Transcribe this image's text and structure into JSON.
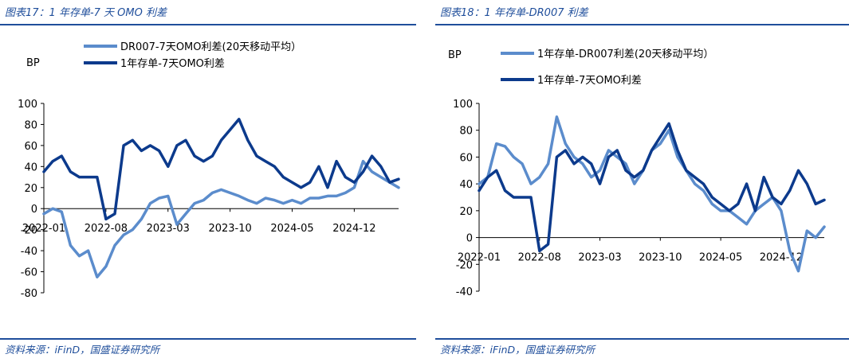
{
  "panels": [
    {
      "title": "图表17：1 年存单-7 天 OMO 利差",
      "source": "资料来源：iFinD，国盛证券研究所"
    },
    {
      "title": "图表18：1 年存单-DR007 利差",
      "source": "资料来源：iFinD，国盛证券研究所"
    }
  ],
  "chart_data": [
    {
      "type": "line",
      "ylabel": "BP",
      "ylim": [
        -80,
        100
      ],
      "yticks": [
        -80,
        -60,
        -40,
        -20,
        0,
        20,
        40,
        60,
        80,
        100
      ],
      "xlim": [
        "2022-01",
        "2025-05"
      ],
      "xticks": [
        "2022-01",
        "2022-08",
        "2023-03",
        "2023-10",
        "2024-05",
        "2024-12"
      ],
      "legend": "top",
      "series": [
        {
          "name": "DR007-7天OMO利差(20天移动平均）",
          "color": "#5b8ccc",
          "x": [
            "2022-01",
            "2022-02",
            "2022-03",
            "2022-04",
            "2022-05",
            "2022-06",
            "2022-07",
            "2022-08",
            "2022-09",
            "2022-10",
            "2022-11",
            "2022-12",
            "2023-01",
            "2023-02",
            "2023-03",
            "2023-04",
            "2023-05",
            "2023-06",
            "2023-07",
            "2023-08",
            "2023-09",
            "2023-10",
            "2023-11",
            "2023-12",
            "2024-01",
            "2024-02",
            "2024-03",
            "2024-04",
            "2024-05",
            "2024-06",
            "2024-07",
            "2024-08",
            "2024-09",
            "2024-10",
            "2024-11",
            "2024-12",
            "2025-01",
            "2025-02",
            "2025-03",
            "2025-04",
            "2025-05"
          ],
          "values": [
            -5,
            0,
            -3,
            -35,
            -45,
            -40,
            -65,
            -55,
            -35,
            -25,
            -20,
            -10,
            5,
            10,
            12,
            -15,
            -5,
            5,
            8,
            15,
            18,
            15,
            12,
            8,
            5,
            10,
            8,
            5,
            8,
            5,
            10,
            10,
            12,
            12,
            15,
            20,
            45,
            35,
            30,
            25,
            20
          ]
        },
        {
          "name": "1年存单-7天OMO利差",
          "color": "#0c3a8c",
          "x": [
            "2022-01",
            "2022-02",
            "2022-03",
            "2022-04",
            "2022-05",
            "2022-06",
            "2022-07",
            "2022-08",
            "2022-09",
            "2022-10",
            "2022-11",
            "2022-12",
            "2023-01",
            "2023-02",
            "2023-03",
            "2023-04",
            "2023-05",
            "2023-06",
            "2023-07",
            "2023-08",
            "2023-09",
            "2023-10",
            "2023-11",
            "2023-12",
            "2024-01",
            "2024-02",
            "2024-03",
            "2024-04",
            "2024-05",
            "2024-06",
            "2024-07",
            "2024-08",
            "2024-09",
            "2024-10",
            "2024-11",
            "2024-12",
            "2025-01",
            "2025-02",
            "2025-03",
            "2025-04",
            "2025-05"
          ],
          "values": [
            35,
            45,
            50,
            35,
            30,
            30,
            30,
            -10,
            -5,
            60,
            65,
            55,
            60,
            55,
            40,
            60,
            65,
            50,
            45,
            50,
            65,
            75,
            85,
            65,
            50,
            45,
            40,
            30,
            25,
            20,
            25,
            40,
            20,
            45,
            30,
            25,
            35,
            50,
            40,
            25,
            28
          ]
        }
      ]
    },
    {
      "type": "line",
      "ylabel": "BP",
      "ylim": [
        -40,
        100
      ],
      "yticks": [
        -40,
        -20,
        0,
        20,
        40,
        60,
        80,
        100
      ],
      "xlim": [
        "2022-01",
        "2025-05"
      ],
      "xticks": [
        "2022-01",
        "2022-08",
        "2023-03",
        "2023-10",
        "2024-05",
        "2024-12"
      ],
      "legend": "top",
      "series": [
        {
          "name": "1年存单-DR007利差(20天移动平均）",
          "color": "#5b8ccc",
          "x": [
            "2022-01",
            "2022-02",
            "2022-03",
            "2022-04",
            "2022-05",
            "2022-06",
            "2022-07",
            "2022-08",
            "2022-09",
            "2022-10",
            "2022-11",
            "2022-12",
            "2023-01",
            "2023-02",
            "2023-03",
            "2023-04",
            "2023-05",
            "2023-06",
            "2023-07",
            "2023-08",
            "2023-09",
            "2023-10",
            "2023-11",
            "2023-12",
            "2024-01",
            "2024-02",
            "2024-03",
            "2024-04",
            "2024-05",
            "2024-06",
            "2024-07",
            "2024-08",
            "2024-09",
            "2024-10",
            "2024-11",
            "2024-12",
            "2025-01",
            "2025-02",
            "2025-03",
            "2025-04",
            "2025-05"
          ],
          "values": [
            40,
            45,
            70,
            68,
            60,
            55,
            40,
            45,
            55,
            90,
            70,
            60,
            55,
            45,
            50,
            65,
            60,
            55,
            40,
            50,
            65,
            70,
            80,
            60,
            50,
            40,
            35,
            25,
            20,
            20,
            15,
            10,
            20,
            25,
            30,
            20,
            -10,
            -25,
            5,
            0,
            8
          ]
        },
        {
          "name": "1年存单-7天OMO利差",
          "color": "#0c3a8c",
          "x": [
            "2022-01",
            "2022-02",
            "2022-03",
            "2022-04",
            "2022-05",
            "2022-06",
            "2022-07",
            "2022-08",
            "2022-09",
            "2022-10",
            "2022-11",
            "2022-12",
            "2023-01",
            "2023-02",
            "2023-03",
            "2023-04",
            "2023-05",
            "2023-06",
            "2023-07",
            "2023-08",
            "2023-09",
            "2023-10",
            "2023-11",
            "2023-12",
            "2024-01",
            "2024-02",
            "2024-03",
            "2024-04",
            "2024-05",
            "2024-06",
            "2024-07",
            "2024-08",
            "2024-09",
            "2024-10",
            "2024-11",
            "2024-12",
            "2025-01",
            "2025-02",
            "2025-03",
            "2025-04",
            "2025-05"
          ],
          "values": [
            35,
            45,
            50,
            35,
            30,
            30,
            30,
            -10,
            -5,
            60,
            65,
            55,
            60,
            55,
            40,
            60,
            65,
            50,
            45,
            50,
            65,
            75,
            85,
            65,
            50,
            45,
            40,
            30,
            25,
            20,
            25,
            40,
            20,
            45,
            30,
            25,
            35,
            50,
            40,
            25,
            28
          ]
        }
      ]
    }
  ]
}
